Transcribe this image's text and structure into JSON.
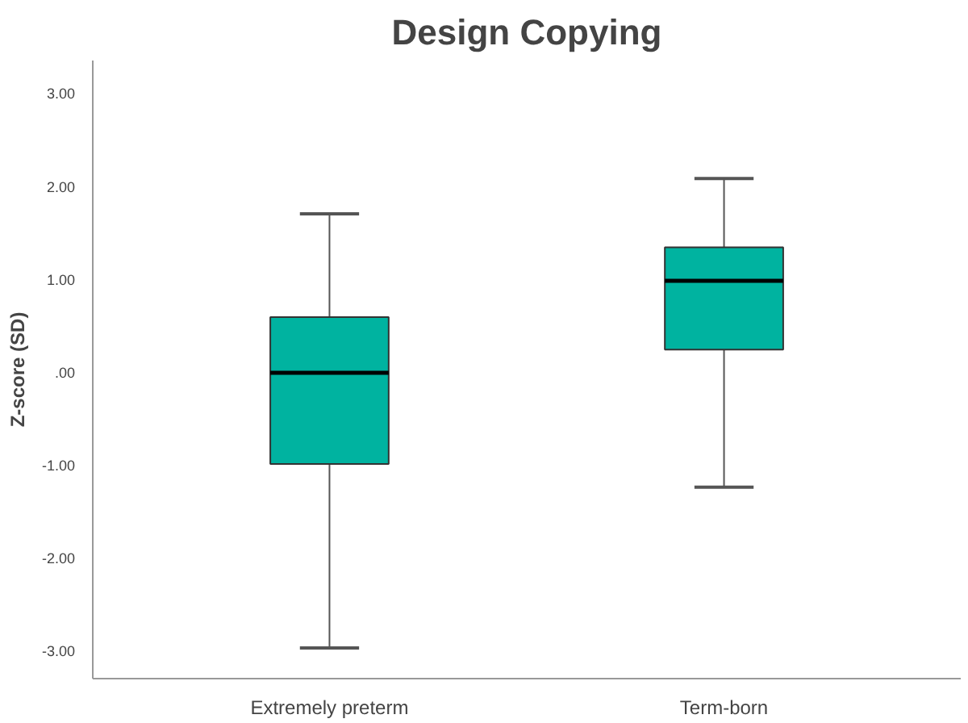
{
  "chart_data": {
    "type": "box",
    "title": "Design Copying",
    "ylabel": "Z-score (SD)",
    "categories": [
      "Extremely preterm",
      "Term-born"
    ],
    "boxes": [
      {
        "low": -2.97,
        "q1": -0.99,
        "median": -0.01,
        "q3": 0.59,
        "high": 1.7
      },
      {
        "low": -1.24,
        "q1": 0.24,
        "median": 0.98,
        "q3": 1.34,
        "high": 2.08
      }
    ],
    "color": "#00b3a0",
    "ylim": [
      -3.3,
      3.35
    ],
    "yticks": [
      {
        "value": -3,
        "label": "-3.00"
      },
      {
        "value": -2,
        "label": "-2.00"
      },
      {
        "value": -1,
        "label": "-1.00"
      },
      {
        "value": 0,
        "label": ".00"
      },
      {
        "value": 1,
        "label": "1.00"
      },
      {
        "value": 2,
        "label": "2.00"
      },
      {
        "value": 3,
        "label": "3.00"
      }
    ],
    "grid": false
  }
}
